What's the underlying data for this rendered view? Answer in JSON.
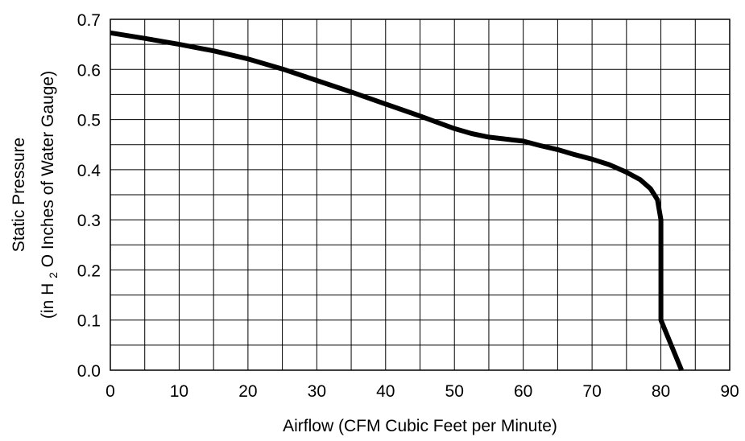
{
  "chart_data": {
    "type": "line",
    "xlabel": "Airflow (CFM Cubic Feet per Minute)",
    "ylabel_line1": "Static Pressure",
    "ylabel_line2_parts": [
      "(in H",
      "2",
      "O Inches of Water Gauge)"
    ],
    "xlim": [
      0,
      90
    ],
    "ylim": [
      0,
      0.7
    ],
    "x_ticks": [
      "0",
      "10",
      "20",
      "30",
      "40",
      "50",
      "60",
      "70",
      "80",
      "90"
    ],
    "y_ticks": [
      "0.0",
      "0.1",
      "0.2",
      "0.3",
      "0.4",
      "0.5",
      "0.6",
      "0.7"
    ],
    "grid": true,
    "series": [
      {
        "color": "#000000",
        "x": [
          0,
          5,
          10,
          15,
          20,
          25,
          30,
          35,
          40,
          45,
          50,
          52.5,
          55,
          57.5,
          60,
          62.5,
          65,
          67.5,
          70,
          72.5,
          75,
          77,
          78.5,
          79.5,
          80,
          80,
          81.5,
          83
        ],
        "y": [
          0.673,
          0.662,
          0.65,
          0.637,
          0.621,
          0.601,
          0.578,
          0.555,
          0.531,
          0.507,
          0.482,
          0.472,
          0.465,
          0.461,
          0.457,
          0.448,
          0.44,
          0.43,
          0.421,
          0.41,
          0.395,
          0.38,
          0.362,
          0.34,
          0.3,
          0.1,
          0.05,
          0.0
        ]
      }
    ]
  }
}
